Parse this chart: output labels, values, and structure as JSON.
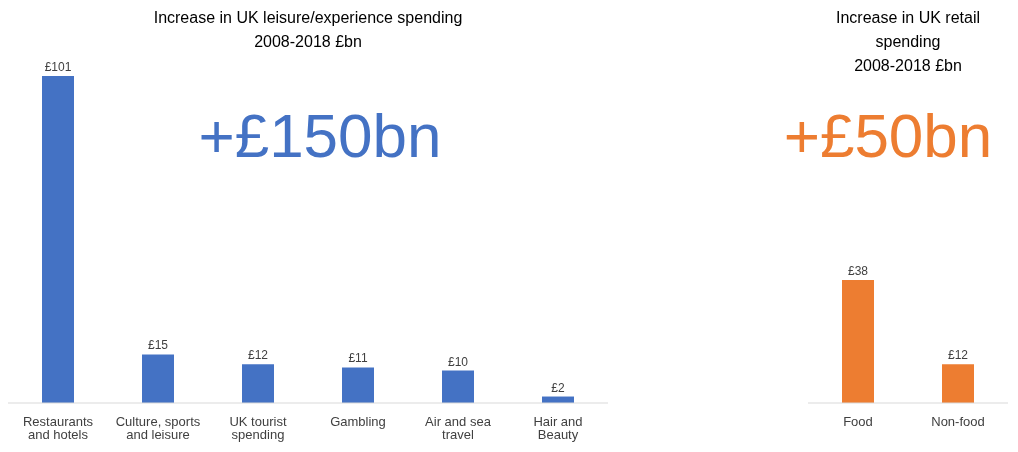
{
  "chart_data": [
    {
      "type": "bar",
      "title": "Increase in UK leisure/experience spending\n2008-2018 £bn",
      "categories": [
        "Restaurants and hotels",
        "Culture, sports and leisure",
        "UK tourist spending",
        "Gambling",
        "Air and sea travel",
        "Hair and Beauty"
      ],
      "values": [
        101,
        15,
        12,
        11,
        10,
        2
      ],
      "value_labels": [
        "£101",
        "£15",
        "£12",
        "£11",
        "£10",
        "£2"
      ],
      "color": "#4472c4",
      "annotations": [
        "+£150bn"
      ]
    },
    {
      "type": "bar",
      "title": "Increase in UK retail spending\n2008-2018 £bn",
      "categories": [
        "Food",
        "Non-food"
      ],
      "values": [
        38,
        12
      ],
      "value_labels": [
        "£38",
        "£12"
      ],
      "color": "#ed7d31",
      "annotations": [
        "+£50bn"
      ]
    }
  ]
}
